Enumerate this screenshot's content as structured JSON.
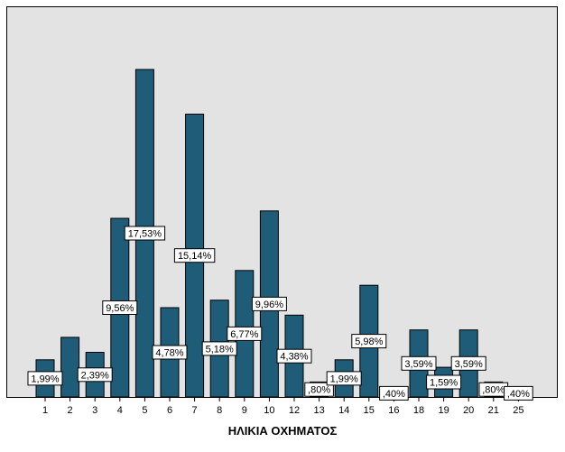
{
  "chart_data": {
    "type": "bar",
    "categories": [
      "1",
      "2",
      "3",
      "4",
      "5",
      "6",
      "7",
      "8",
      "9",
      "10",
      "12",
      "13",
      "14",
      "15",
      "16",
      "18",
      "19",
      "20",
      "21",
      "25"
    ],
    "values": [
      1.99,
      3.19,
      2.39,
      9.56,
      17.53,
      4.78,
      15.14,
      5.18,
      6.77,
      9.96,
      4.38,
      0.8,
      1.99,
      5.98,
      0.4,
      3.59,
      1.59,
      3.59,
      0.8,
      0.4
    ],
    "data_labels": [
      "1,99%",
      "",
      "2,39%",
      "9,56%",
      "17,53%",
      "4,78%",
      "15,14%",
      "5,18%",
      "6,77%",
      "9,96%",
      "4,38%",
      ",80%",
      "1,99%",
      "5,98%",
      ",40%",
      "3,59%",
      "1,59%",
      "3,59%",
      ",80%",
      ",40%"
    ],
    "xlabel": "ΗΛΙΚΙΑ ΟΧΗΜΑΤΟΣ",
    "ylabel": "",
    "ylim": [
      0,
      17.53
    ],
    "grid": false,
    "legend": "none",
    "colors": {
      "bar": "#1f5c78",
      "plot_bg": "#e3e3e3",
      "label_bg": "#ffffff"
    }
  }
}
